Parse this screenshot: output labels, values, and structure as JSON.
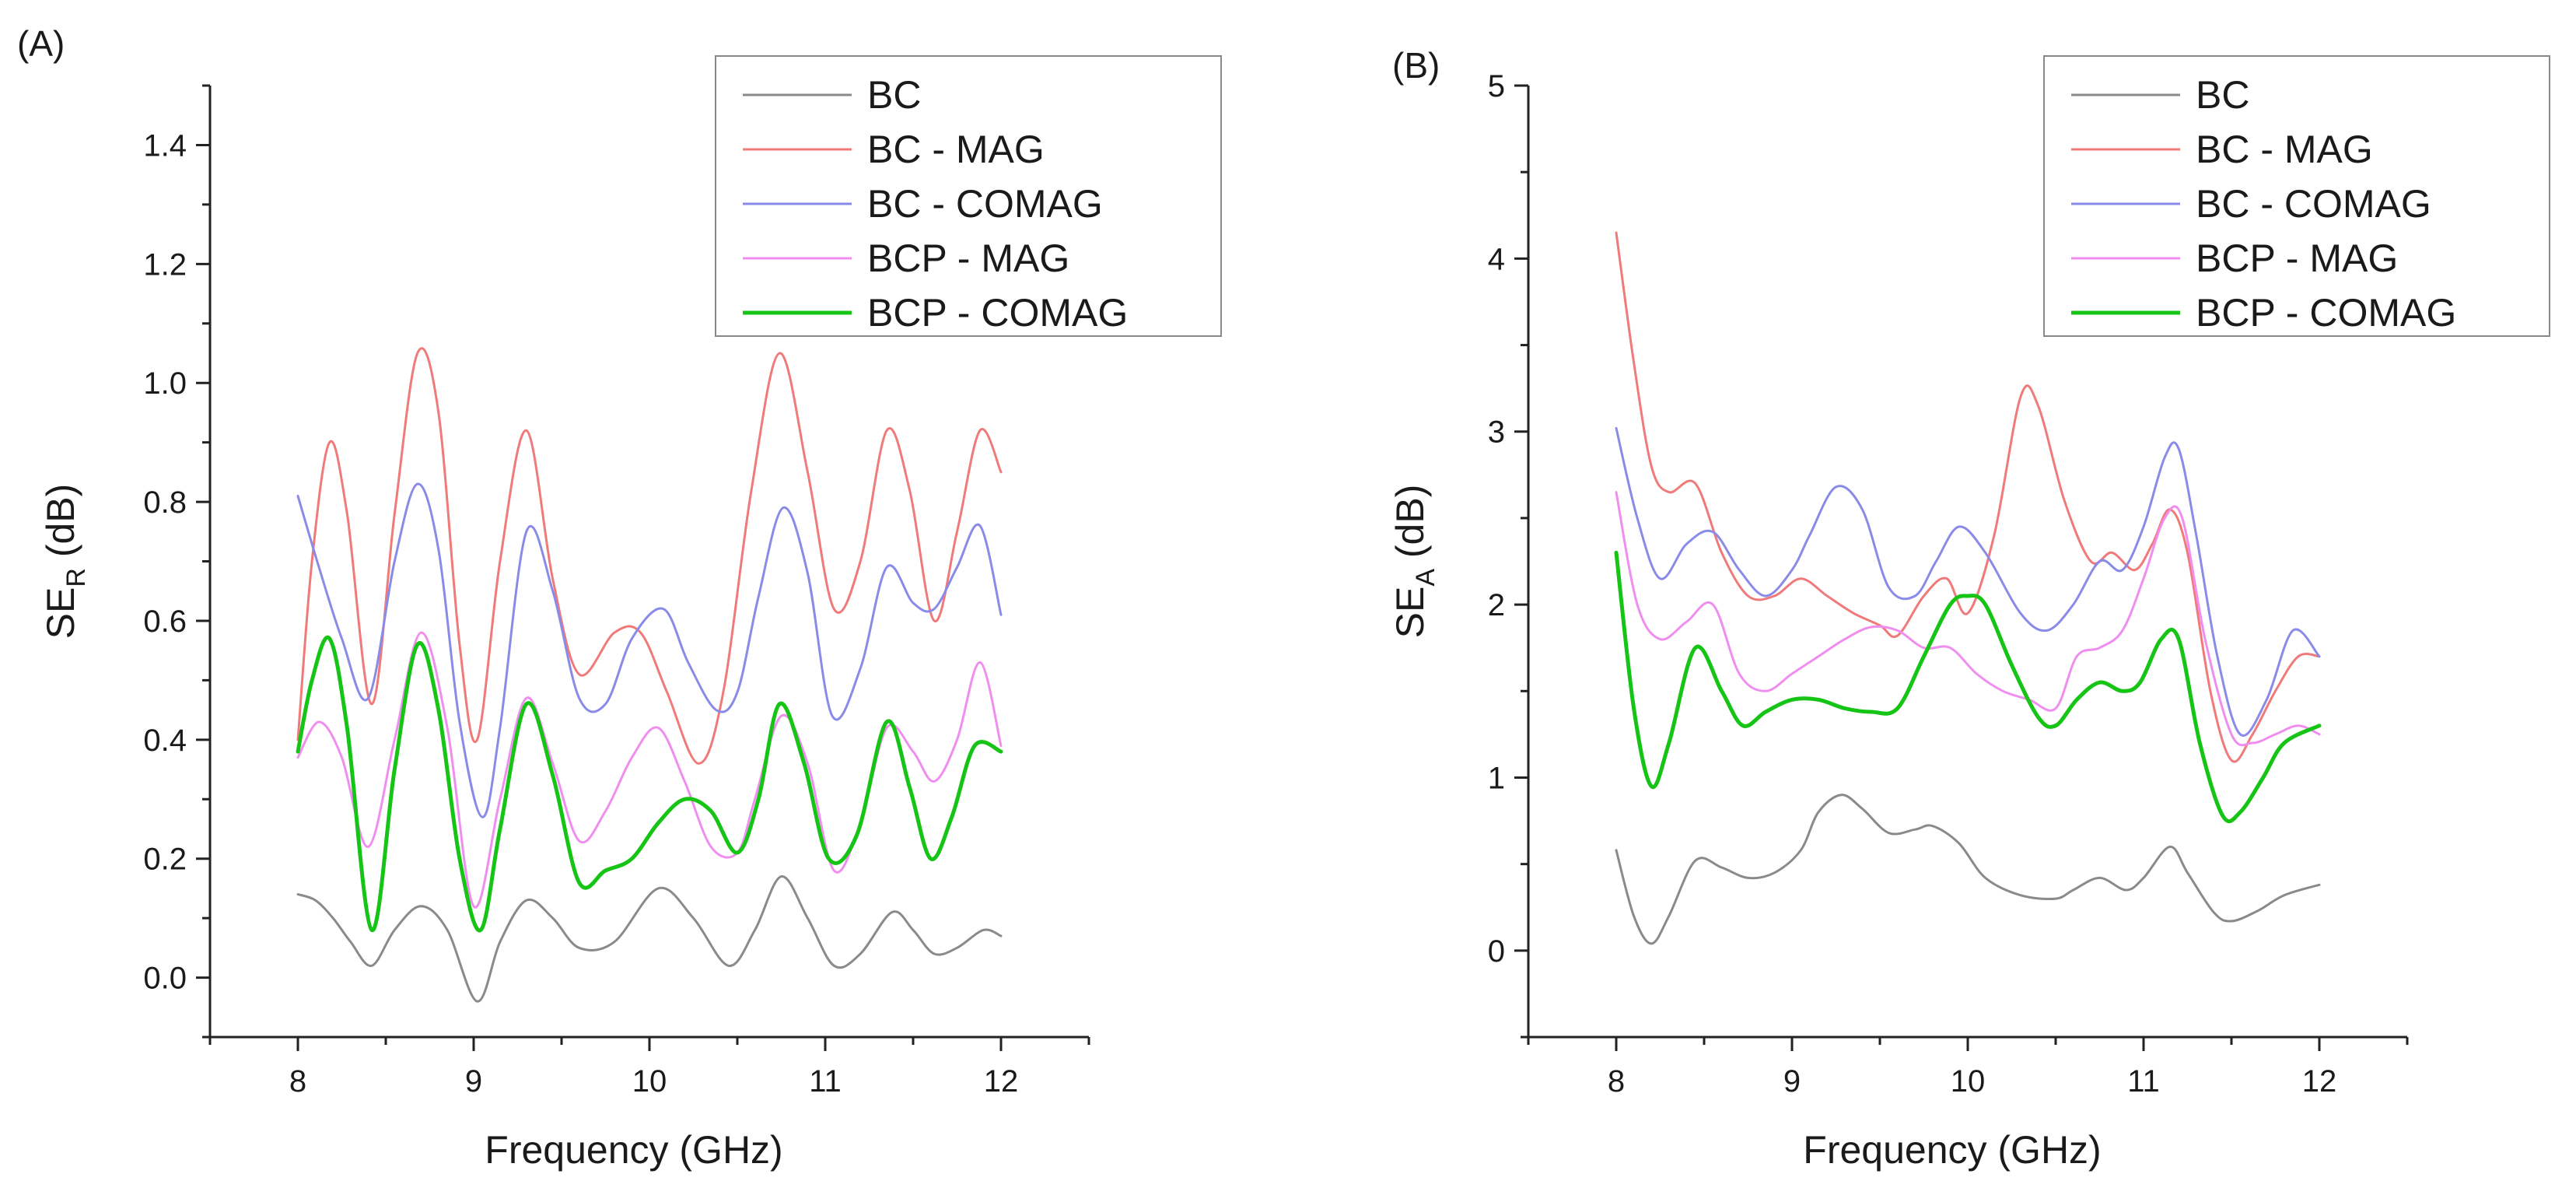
{
  "chart_data": [
    {
      "type": "line",
      "panel_label": "(A)",
      "xlabel": "Frequency (GHz)",
      "ylabel_main": "SE",
      "ylabel_sub": "R",
      "ylabel_unit": " (dB)",
      "xlim": [
        7.5,
        12.5
      ],
      "ylim": [
        -0.1,
        1.5
      ],
      "xticks": [
        8,
        9,
        10,
        11,
        12
      ],
      "xtick_labels": [
        "8",
        "9",
        "10",
        "11",
        "12"
      ],
      "yticks": [
        0.0,
        0.2,
        0.4,
        0.6,
        0.8,
        1.0,
        1.2,
        1.4
      ],
      "ytick_labels": [
        "0.0",
        "0.2",
        "0.4",
        "0.6",
        "0.8",
        "1.0",
        "1.2",
        "1.4"
      ],
      "legend_position": "top-right",
      "series": [
        {
          "name": "BC",
          "color": "#8a8a8a",
          "x": [
            8.0,
            8.1,
            8.2,
            8.3,
            8.42,
            8.55,
            8.7,
            8.85,
            9.02,
            9.15,
            9.3,
            9.45,
            9.6,
            9.8,
            10.05,
            10.25,
            10.45,
            10.6,
            10.75,
            10.9,
            11.05,
            11.2,
            11.38,
            11.5,
            11.62,
            11.75,
            11.9,
            12.0
          ],
          "values": [
            0.14,
            0.13,
            0.1,
            0.06,
            0.02,
            0.08,
            0.12,
            0.08,
            -0.04,
            0.06,
            0.13,
            0.1,
            0.05,
            0.06,
            0.15,
            0.1,
            0.02,
            0.08,
            0.17,
            0.1,
            0.02,
            0.04,
            0.11,
            0.08,
            0.04,
            0.05,
            0.08,
            0.07
          ]
        },
        {
          "name": "BC - MAG",
          "color": "#f07a7a",
          "x": [
            8.0,
            8.08,
            8.18,
            8.28,
            8.42,
            8.55,
            8.68,
            8.8,
            8.92,
            9.02,
            9.15,
            9.3,
            9.45,
            9.6,
            9.8,
            9.95,
            10.1,
            10.28,
            10.42,
            10.58,
            10.74,
            10.9,
            11.05,
            11.2,
            11.35,
            11.48,
            11.62,
            11.75,
            11.88,
            12.0
          ],
          "values": [
            0.4,
            0.7,
            0.9,
            0.78,
            0.46,
            0.78,
            1.05,
            0.95,
            0.56,
            0.4,
            0.7,
            0.92,
            0.67,
            0.51,
            0.58,
            0.58,
            0.48,
            0.36,
            0.48,
            0.82,
            1.05,
            0.85,
            0.62,
            0.7,
            0.92,
            0.82,
            0.6,
            0.75,
            0.92,
            0.85
          ]
        },
        {
          "name": "BC - COMAG",
          "color": "#8a8ae8",
          "x": [
            8.0,
            8.12,
            8.25,
            8.4,
            8.55,
            8.68,
            8.8,
            8.92,
            9.05,
            9.15,
            9.3,
            9.45,
            9.6,
            9.75,
            9.9,
            10.08,
            10.22,
            10.38,
            10.5,
            10.62,
            10.76,
            10.9,
            11.04,
            11.2,
            11.35,
            11.5,
            11.62,
            11.75,
            11.88,
            12.0
          ],
          "values": [
            0.81,
            0.69,
            0.57,
            0.47,
            0.7,
            0.83,
            0.72,
            0.43,
            0.27,
            0.42,
            0.75,
            0.65,
            0.47,
            0.46,
            0.57,
            0.62,
            0.53,
            0.45,
            0.48,
            0.64,
            0.79,
            0.68,
            0.44,
            0.52,
            0.69,
            0.63,
            0.62,
            0.69,
            0.76,
            0.61
          ]
        },
        {
          "name": "BCP - MAG",
          "color": "#f08ef0",
          "x": [
            8.0,
            8.12,
            8.25,
            8.4,
            8.55,
            8.7,
            8.85,
            9.0,
            9.15,
            9.3,
            9.45,
            9.6,
            9.75,
            9.9,
            10.05,
            10.2,
            10.35,
            10.5,
            10.6,
            10.75,
            10.9,
            11.05,
            11.2,
            11.35,
            11.5,
            11.62,
            11.75,
            11.88,
            12.0
          ],
          "values": [
            0.37,
            0.43,
            0.37,
            0.22,
            0.4,
            0.58,
            0.42,
            0.12,
            0.3,
            0.47,
            0.36,
            0.23,
            0.28,
            0.37,
            0.42,
            0.33,
            0.22,
            0.21,
            0.3,
            0.44,
            0.36,
            0.18,
            0.26,
            0.42,
            0.38,
            0.33,
            0.4,
            0.53,
            0.39
          ]
        },
        {
          "name": "BCP - COMAG",
          "color": "#16c416",
          "x": [
            8.0,
            8.08,
            8.18,
            8.28,
            8.42,
            8.55,
            8.68,
            8.8,
            8.92,
            9.04,
            9.15,
            9.3,
            9.45,
            9.6,
            9.75,
            9.9,
            10.05,
            10.2,
            10.35,
            10.5,
            10.62,
            10.74,
            10.88,
            11.02,
            11.18,
            11.35,
            11.48,
            11.6,
            11.72,
            11.85,
            12.0
          ],
          "values": [
            0.38,
            0.5,
            0.57,
            0.42,
            0.08,
            0.35,
            0.56,
            0.45,
            0.2,
            0.08,
            0.25,
            0.46,
            0.34,
            0.16,
            0.18,
            0.2,
            0.26,
            0.3,
            0.28,
            0.21,
            0.3,
            0.46,
            0.36,
            0.2,
            0.24,
            0.43,
            0.32,
            0.2,
            0.27,
            0.39,
            0.38
          ]
        }
      ]
    },
    {
      "type": "line",
      "panel_label": "(B)",
      "xlabel": "Frequency (GHz)",
      "ylabel_main": "SE",
      "ylabel_sub": "A",
      "ylabel_unit": " (dB)",
      "xlim": [
        7.5,
        12.5
      ],
      "ylim": [
        -0.5,
        5
      ],
      "xticks": [
        8,
        9,
        10,
        11,
        12
      ],
      "xtick_labels": [
        "8",
        "9",
        "10",
        "11",
        "12"
      ],
      "yticks": [
        0,
        1,
        2,
        3,
        4,
        5
      ],
      "ytick_labels": [
        "0",
        "1",
        "2",
        "3",
        "4",
        "5"
      ],
      "legend_position": "top-right",
      "series": [
        {
          "name": "BC",
          "color": "#8a8a8a",
          "x": [
            8.0,
            8.1,
            8.2,
            8.3,
            8.45,
            8.6,
            8.75,
            8.9,
            9.05,
            9.15,
            9.28,
            9.4,
            9.55,
            9.7,
            9.8,
            9.95,
            10.1,
            10.3,
            10.5,
            10.6,
            10.75,
            10.9,
            11.0,
            11.15,
            11.25,
            11.4,
            11.5,
            11.65,
            11.8,
            12.0
          ],
          "values": [
            0.58,
            0.2,
            0.04,
            0.2,
            0.52,
            0.48,
            0.42,
            0.45,
            0.58,
            0.8,
            0.9,
            0.82,
            0.68,
            0.7,
            0.72,
            0.62,
            0.42,
            0.32,
            0.3,
            0.35,
            0.42,
            0.35,
            0.42,
            0.6,
            0.45,
            0.22,
            0.17,
            0.23,
            0.32,
            0.38
          ]
        },
        {
          "name": "BC - MAG",
          "color": "#f07a7a",
          "x": [
            8.0,
            8.1,
            8.2,
            8.3,
            8.45,
            8.6,
            8.75,
            8.9,
            9.05,
            9.2,
            9.35,
            9.5,
            9.6,
            9.75,
            9.88,
            10.0,
            10.15,
            10.3,
            10.4,
            10.55,
            10.7,
            10.82,
            10.95,
            11.05,
            11.15,
            11.25,
            11.38,
            11.5,
            11.62,
            11.75,
            11.88,
            12.0
          ],
          "values": [
            4.15,
            3.4,
            2.8,
            2.65,
            2.7,
            2.3,
            2.05,
            2.05,
            2.15,
            2.05,
            1.95,
            1.88,
            1.82,
            2.05,
            2.15,
            1.95,
            2.4,
            3.2,
            3.15,
            2.6,
            2.25,
            2.3,
            2.2,
            2.35,
            2.55,
            2.3,
            1.5,
            1.1,
            1.25,
            1.5,
            1.7,
            1.7
          ]
        },
        {
          "name": "BC - COMAG",
          "color": "#8a8ae8",
          "x": [
            8.0,
            8.12,
            8.25,
            8.4,
            8.55,
            8.7,
            8.85,
            9.0,
            9.1,
            9.25,
            9.4,
            9.55,
            9.7,
            9.82,
            9.95,
            10.1,
            10.3,
            10.45,
            10.6,
            10.75,
            10.88,
            11.0,
            11.12,
            11.2,
            11.3,
            11.42,
            11.55,
            11.7,
            11.85,
            12.0
          ],
          "values": [
            3.02,
            2.5,
            2.15,
            2.35,
            2.42,
            2.2,
            2.05,
            2.2,
            2.4,
            2.68,
            2.55,
            2.1,
            2.05,
            2.25,
            2.45,
            2.3,
            1.95,
            1.85,
            2.0,
            2.25,
            2.2,
            2.45,
            2.85,
            2.9,
            2.4,
            1.7,
            1.25,
            1.45,
            1.85,
            1.7
          ]
        },
        {
          "name": "BCP - MAG",
          "color": "#f08ef0",
          "x": [
            8.0,
            8.12,
            8.25,
            8.4,
            8.55,
            8.7,
            8.85,
            9.0,
            9.15,
            9.3,
            9.45,
            9.6,
            9.75,
            9.9,
            10.05,
            10.2,
            10.35,
            10.5,
            10.62,
            10.75,
            10.88,
            11.0,
            11.12,
            11.22,
            11.35,
            11.5,
            11.62,
            11.75,
            11.88,
            12.0
          ],
          "values": [
            2.65,
            2.0,
            1.8,
            1.9,
            2.0,
            1.6,
            1.5,
            1.6,
            1.7,
            1.8,
            1.87,
            1.85,
            1.75,
            1.75,
            1.6,
            1.5,
            1.45,
            1.4,
            1.7,
            1.75,
            1.85,
            2.15,
            2.5,
            2.5,
            1.8,
            1.25,
            1.2,
            1.25,
            1.3,
            1.25
          ]
        },
        {
          "name": "BCP - COMAG",
          "color": "#16c416",
          "x": [
            8.0,
            8.1,
            8.2,
            8.3,
            8.45,
            8.6,
            8.72,
            8.85,
            9.0,
            9.15,
            9.3,
            9.45,
            9.6,
            9.75,
            9.9,
            10.0,
            10.1,
            10.25,
            10.4,
            10.5,
            10.62,
            10.75,
            10.88,
            10.98,
            11.1,
            11.2,
            11.32,
            11.45,
            11.55,
            11.68,
            11.8,
            12.0
          ],
          "values": [
            2.3,
            1.4,
            0.95,
            1.2,
            1.75,
            1.5,
            1.3,
            1.38,
            1.45,
            1.45,
            1.4,
            1.38,
            1.4,
            1.7,
            2.0,
            2.05,
            2.0,
            1.65,
            1.35,
            1.3,
            1.45,
            1.55,
            1.5,
            1.55,
            1.8,
            1.8,
            1.2,
            0.78,
            0.8,
            1.0,
            1.2,
            1.3
          ]
        }
      ]
    }
  ]
}
